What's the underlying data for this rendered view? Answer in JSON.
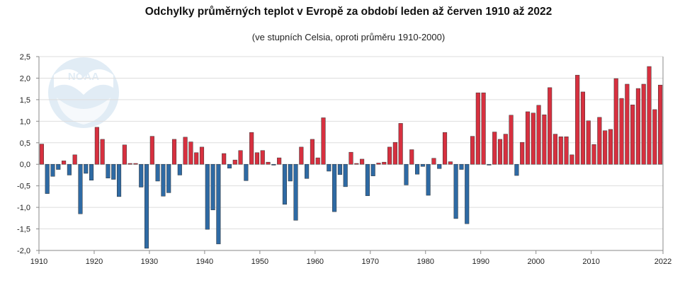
{
  "chart_data": {
    "type": "bar",
    "title": "Odchylky průměrných teplot v Evropě za období leden až červen 1910 až 2022",
    "subtitle": "(ve stupních Celsia, oproti průměru 1910-2000)",
    "ylim": [
      -2.0,
      2.5
    ],
    "y_ticks": [
      "-2,0",
      "-1,5",
      "-1,0",
      "-0,5",
      "0,0",
      "0,5",
      "1,0",
      "1,5",
      "2,0",
      "2,5"
    ],
    "x_ticks": [
      "1910",
      "1920",
      "1930",
      "1940",
      "1950",
      "1960",
      "1970",
      "1980",
      "1990",
      "2000",
      "2010",
      "2022"
    ],
    "grid": true,
    "colors": {
      "positive": "#d7303f",
      "negative": "#2e6aa4",
      "grid": "#dddddd",
      "axis": "#8a8a8a"
    },
    "years": [
      1910,
      1911,
      1912,
      1913,
      1914,
      1915,
      1916,
      1917,
      1918,
      1919,
      1920,
      1921,
      1922,
      1923,
      1924,
      1925,
      1926,
      1927,
      1928,
      1929,
      1930,
      1931,
      1932,
      1933,
      1934,
      1935,
      1936,
      1937,
      1938,
      1939,
      1940,
      1941,
      1942,
      1943,
      1944,
      1945,
      1946,
      1947,
      1948,
      1949,
      1950,
      1951,
      1952,
      1953,
      1954,
      1955,
      1956,
      1957,
      1958,
      1959,
      1960,
      1961,
      1962,
      1963,
      1964,
      1965,
      1966,
      1967,
      1968,
      1969,
      1970,
      1971,
      1972,
      1973,
      1974,
      1975,
      1976,
      1977,
      1978,
      1979,
      1980,
      1981,
      1982,
      1983,
      1984,
      1985,
      1986,
      1987,
      1988,
      1989,
      1990,
      1991,
      1992,
      1993,
      1994,
      1995,
      1996,
      1997,
      1998,
      1999,
      2000,
      2001,
      2002,
      2003,
      2004,
      2005,
      2006,
      2007,
      2008,
      2009,
      2010,
      2011,
      2012,
      2013,
      2014,
      2015,
      2016,
      2017,
      2018,
      2019,
      2020,
      2021,
      2022
    ],
    "values": [
      0.47,
      -0.68,
      -0.28,
      -0.12,
      0.08,
      -0.25,
      0.22,
      -1.15,
      -0.21,
      -0.37,
      0.86,
      0.58,
      -0.32,
      -0.35,
      -0.75,
      0.45,
      0.02,
      0.02,
      -0.53,
      -1.95,
      0.65,
      -0.39,
      -0.74,
      -0.66,
      0.58,
      -0.25,
      0.63,
      0.52,
      0.27,
      0.4,
      -1.51,
      -1.06,
      -1.85,
      0.25,
      -0.09,
      0.1,
      0.32,
      -0.38,
      0.74,
      0.27,
      0.32,
      0.05,
      -0.02,
      0.15,
      -0.93,
      -0.39,
      -1.3,
      0.4,
      -0.33,
      0.58,
      0.15,
      1.08,
      -0.16,
      -1.1,
      -0.24,
      -0.52,
      0.28,
      0.02,
      0.12,
      -0.73,
      -0.27,
      0.03,
      0.05,
      0.4,
      0.51,
      0.95,
      -0.48,
      0.34,
      -0.23,
      -0.05,
      -0.72,
      0.14,
      -0.1,
      0.74,
      0.06,
      -1.26,
      -0.12,
      -1.38,
      0.65,
      1.66,
      1.66,
      -0.02,
      0.75,
      0.58,
      0.7,
      1.14,
      -0.26,
      0.51,
      1.22,
      1.19,
      1.37,
      1.15,
      1.78,
      0.7,
      0.64,
      0.64,
      0.22,
      2.07,
      1.68,
      1.01,
      0.46,
      1.09,
      0.78,
      0.81,
      1.99,
      1.53,
      1.86,
      1.38,
      1.76,
      1.86,
      2.27,
      1.27,
      1.84
    ]
  },
  "logo_text": "NOAA"
}
